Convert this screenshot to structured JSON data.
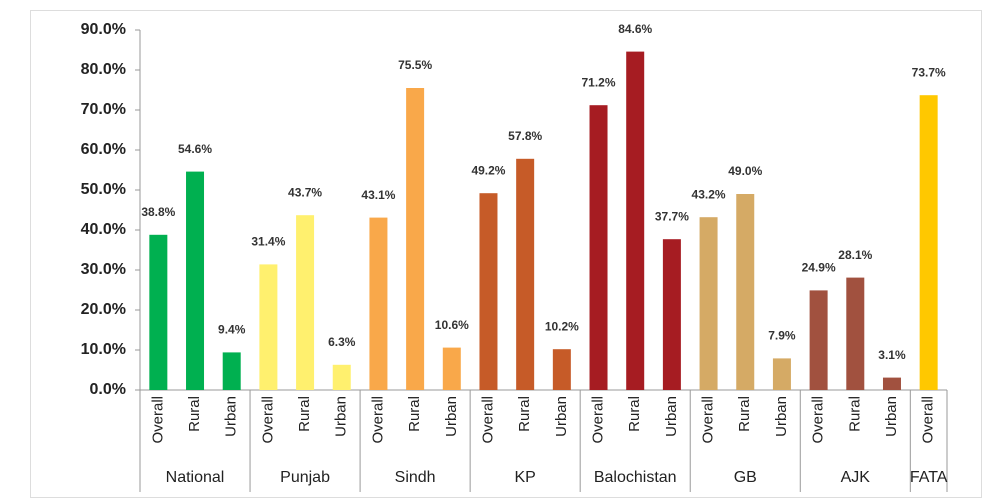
{
  "chart_data": {
    "type": "bar",
    "ylim": [
      0,
      90
    ],
    "yticks": [
      {
        "value": 0,
        "label": "0.0%"
      },
      {
        "value": 10,
        "label": "10.0%"
      },
      {
        "value": 20,
        "label": "20.0%"
      },
      {
        "value": 30,
        "label": "30.0%"
      },
      {
        "value": 40,
        "label": "40.0%"
      },
      {
        "value": 50,
        "label": "50.0%"
      },
      {
        "value": 60,
        "label": "60.0%"
      },
      {
        "value": 70,
        "label": "70.0%"
      },
      {
        "value": 80,
        "label": "80.0%"
      },
      {
        "value": 90,
        "label": "90.0%"
      }
    ],
    "groups": [
      {
        "name": "National",
        "color": "#00b050",
        "categories": [
          "Overall",
          "Rural",
          "Urban"
        ],
        "values": [
          38.8,
          54.6,
          9.4
        ],
        "value_labels": [
          "38.8%",
          "54.6%",
          "9.4%"
        ]
      },
      {
        "name": "Punjab",
        "color": "#fff06e",
        "categories": [
          "Overall",
          "Rural",
          "Urban"
        ],
        "values": [
          31.4,
          43.7,
          6.3
        ],
        "value_labels": [
          "31.4%",
          "43.7%",
          "6.3%"
        ]
      },
      {
        "name": "Sindh",
        "color": "#f9a84a",
        "categories": [
          "Overall",
          "Rural",
          "Urban"
        ],
        "values": [
          43.1,
          75.5,
          10.6
        ],
        "value_labels": [
          "43.1%",
          "75.5%",
          "10.6%"
        ]
      },
      {
        "name": "KP",
        "color": "#c65b28",
        "categories": [
          "Overall",
          "Rural",
          "Urban"
        ],
        "values": [
          49.2,
          57.8,
          10.2
        ],
        "value_labels": [
          "49.2%",
          "57.8%",
          "10.2%"
        ]
      },
      {
        "name": "Balochistan",
        "color": "#a61c22",
        "categories": [
          "Overall",
          "Rural",
          "Urban"
        ],
        "values": [
          71.2,
          84.6,
          37.7
        ],
        "value_labels": [
          "71.2%",
          "84.6%",
          "37.7%"
        ]
      },
      {
        "name": "GB",
        "color": "#d5aa65",
        "categories": [
          "Overall",
          "Rural",
          "Urban"
        ],
        "values": [
          43.2,
          49.0,
          7.9
        ],
        "value_labels": [
          "43.2%",
          "49.0%",
          "7.9%"
        ]
      },
      {
        "name": "AJK",
        "color": "#a1513f",
        "categories": [
          "Overall",
          "Rural",
          "Urban"
        ],
        "values": [
          24.9,
          28.1,
          3.1
        ],
        "value_labels": [
          "24.9%",
          "28.1%",
          "3.1%"
        ]
      },
      {
        "name": "FATA",
        "color": "#ffc800",
        "categories": [
          "Overall"
        ],
        "values": [
          73.7
        ],
        "value_labels": [
          "73.7%"
        ]
      }
    ]
  }
}
